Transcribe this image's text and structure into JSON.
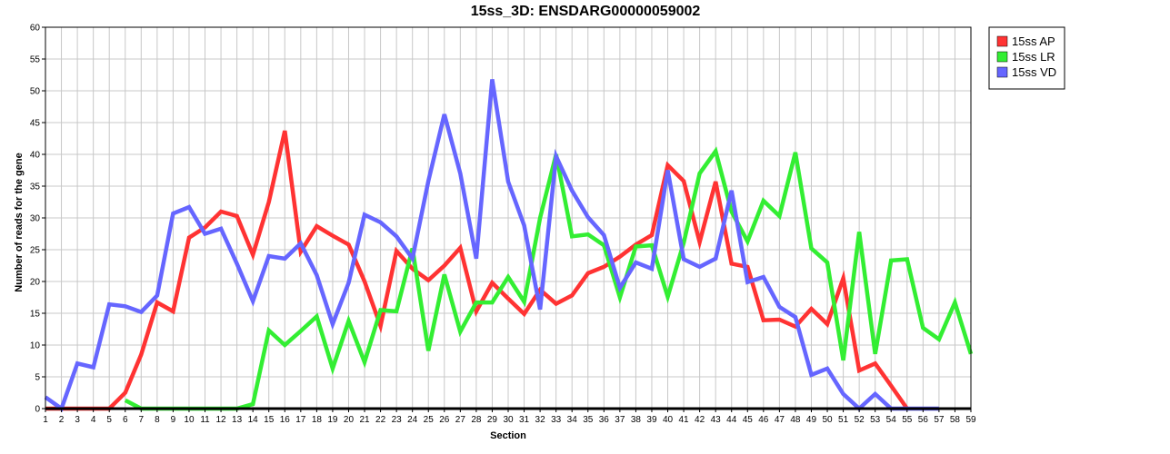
{
  "chart_data": {
    "type": "line",
    "title": "15ss_3D: ENSDARG00000059002",
    "xlabel": "Section",
    "ylabel": "Number of reads for the gene",
    "x": [
      1,
      2,
      3,
      4,
      5,
      6,
      7,
      8,
      9,
      10,
      11,
      12,
      13,
      14,
      15,
      16,
      17,
      18,
      19,
      20,
      21,
      22,
      23,
      24,
      25,
      26,
      27,
      28,
      29,
      30,
      31,
      32,
      33,
      34,
      35,
      36,
      37,
      38,
      39,
      40,
      41,
      42,
      43,
      44,
      45,
      46,
      47,
      48,
      49,
      50,
      51,
      52,
      53,
      54,
      55,
      56,
      57,
      58,
      59
    ],
    "xlim": [
      1,
      59
    ],
    "ylim": [
      0,
      60
    ],
    "yticks": [
      0,
      5,
      10,
      15,
      20,
      25,
      30,
      35,
      40,
      45,
      50,
      55,
      60
    ],
    "grid": true,
    "legend_position": "top-right outside",
    "series": [
      {
        "name": "15ss AP",
        "color": "#ff3333",
        "values": [
          0,
          0,
          0,
          0,
          0,
          2.5,
          8.5,
          16.7,
          15.3,
          26.9,
          28.5,
          31.0,
          30.3,
          24.2,
          32.5,
          43.7,
          24.7,
          28.7,
          27.2,
          25.8,
          20.0,
          13.0,
          24.8,
          22.0,
          20.2,
          22.5,
          25.3,
          15.3,
          19.8,
          17.3,
          14.9,
          18.7,
          16.5,
          17.8,
          21.3,
          22.3,
          23.9,
          25.8,
          27.3,
          38.3,
          35.8,
          26.2,
          35.7,
          22.8,
          22.3,
          13.9,
          14.0,
          12.9,
          15.7,
          13.3,
          20.5,
          6.0,
          7.1,
          3.6,
          0,
          null,
          null,
          null,
          null
        ]
      },
      {
        "name": "15ss LR",
        "color": "#33ee33",
        "values": [
          null,
          null,
          null,
          null,
          null,
          1.3,
          0,
          0,
          0,
          0,
          0,
          0,
          0,
          0.7,
          12.3,
          10.0,
          12.2,
          14.5,
          6.3,
          13.8,
          7.3,
          15.5,
          15.3,
          25.2,
          9.1,
          21.1,
          12.1,
          16.7,
          16.7,
          20.7,
          16.8,
          30.0,
          40.0,
          27.1,
          27.4,
          25.7,
          17.5,
          25.5,
          25.7,
          17.6,
          26.1,
          37.0,
          40.5,
          31.0,
          26.3,
          32.7,
          30.3,
          40.3,
          25.2,
          23.0,
          7.6,
          27.8,
          8.6,
          23.3,
          23.5,
          12.7,
          10.9,
          16.7,
          8.6
        ]
      },
      {
        "name": "15ss VD",
        "color": "#6666ff",
        "values": [
          1.8,
          0,
          7.1,
          6.5,
          16.4,
          16.1,
          15.2,
          17.8,
          30.7,
          31.7,
          27.5,
          28.3,
          22.8,
          16.9,
          24.0,
          23.6,
          26.0,
          21.0,
          13.3,
          19.8,
          30.5,
          29.3,
          27.1,
          23.6,
          35.8,
          46.3,
          37.0,
          23.6,
          51.8,
          35.7,
          28.8,
          15.6,
          39.7,
          34.3,
          30.1,
          27.3,
          19.0,
          23.0,
          22.0,
          37.5,
          23.5,
          22.3,
          23.6,
          34.3,
          19.9,
          20.7,
          16.0,
          14.4,
          5.3,
          6.3,
          2.3,
          0,
          2.3,
          0,
          0,
          0,
          0,
          null,
          null
        ]
      }
    ]
  }
}
